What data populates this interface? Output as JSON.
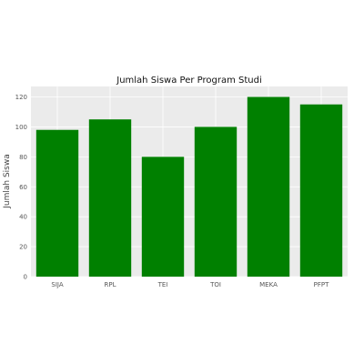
{
  "colors": {
    "bar": "#008000",
    "plot_background": "#ebebeb",
    "grid": "#ffffff"
  },
  "chart_data": {
    "type": "bar",
    "title": "Jumlah Siswa Per Program Studi",
    "xlabel": "",
    "ylabel": "Jumlah Siswa",
    "categories": [
      "SIJA",
      "RPL",
      "TEI",
      "TOI",
      "MEKA",
      "PFPT"
    ],
    "values": [
      98,
      105,
      80,
      100,
      120,
      115
    ],
    "ylim": [
      0,
      127
    ],
    "yticks": [
      0,
      20,
      40,
      60,
      80,
      100,
      120
    ],
    "grid": true,
    "legend": "none"
  }
}
